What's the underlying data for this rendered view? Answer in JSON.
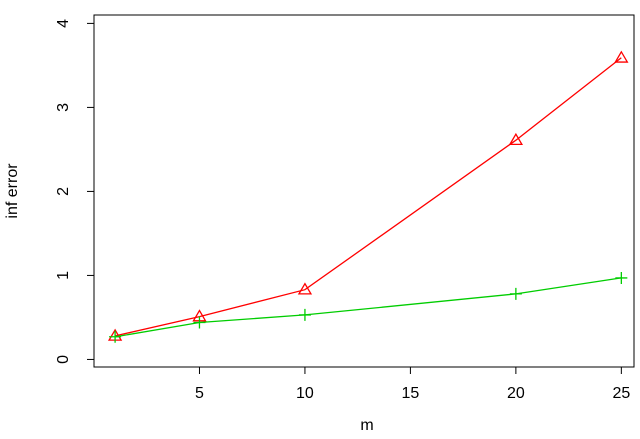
{
  "chart_data": {
    "type": "line",
    "title": "",
    "xlabel": "m",
    "ylabel": "inf error",
    "xlim": [
      0,
      25.6
    ],
    "ylim": [
      -0.09,
      4.1
    ],
    "x_ticks": [
      5,
      10,
      15,
      20,
      25
    ],
    "y_ticks": [
      0,
      1,
      2,
      3,
      4
    ],
    "grid": false,
    "legend": "none",
    "series": [
      {
        "marker": "triangle",
        "color": "#ff0000",
        "x": [
          1,
          5,
          10,
          20,
          25
        ],
        "y": [
          0.28,
          0.51,
          0.83,
          2.61,
          3.59
        ]
      },
      {
        "marker": "plus",
        "color": "#00cd00",
        "x": [
          1,
          5,
          10,
          20,
          25
        ],
        "y": [
          0.27,
          0.44,
          0.53,
          0.78,
          0.97
        ]
      }
    ]
  }
}
